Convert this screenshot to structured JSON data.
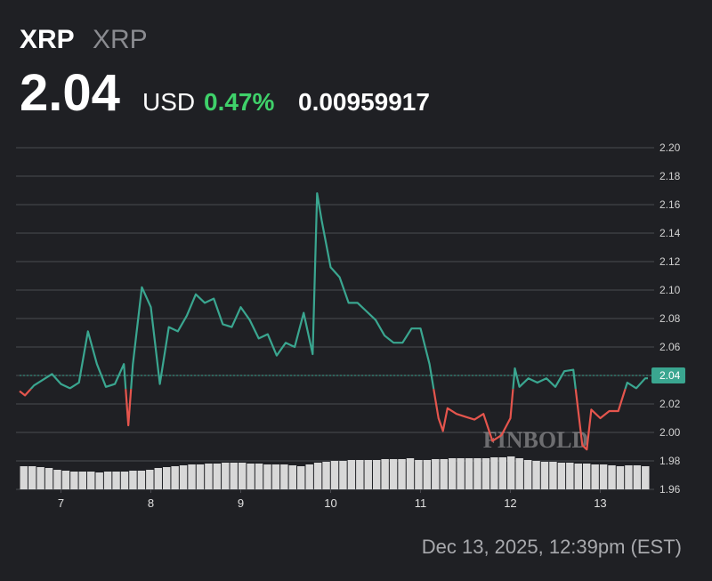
{
  "header": {
    "symbol": "XRP",
    "name": "XRP",
    "price": "2.04",
    "currency": "USD",
    "change_percent": "0.47%",
    "change": "0.00959917"
  },
  "chart_data": {
    "type": "line",
    "x": [
      6.54,
      6.6,
      6.7,
      6.8,
      6.9,
      7.0,
      7.1,
      7.2,
      7.3,
      7.4,
      7.5,
      7.6,
      7.7,
      7.75,
      7.8,
      7.9,
      8.0,
      8.1,
      8.2,
      8.3,
      8.4,
      8.5,
      8.6,
      8.7,
      8.8,
      8.9,
      9.0,
      9.1,
      9.2,
      9.3,
      9.4,
      9.5,
      9.6,
      9.7,
      9.8,
      9.85,
      9.9,
      10.0,
      10.1,
      10.2,
      10.3,
      10.4,
      10.5,
      10.6,
      10.7,
      10.8,
      10.9,
      11.0,
      11.1,
      11.2,
      11.25,
      11.3,
      11.4,
      11.5,
      11.6,
      11.7,
      11.8,
      11.9,
      12.0,
      12.05,
      12.1,
      12.2,
      12.3,
      12.4,
      12.5,
      12.6,
      12.7,
      12.8,
      12.85,
      12.9,
      13.0,
      13.1,
      13.2,
      13.3,
      13.4,
      13.5,
      13.53
    ],
    "values": [
      2.029,
      2.026,
      2.033,
      2.037,
      2.041,
      2.034,
      2.031,
      2.035,
      2.071,
      2.048,
      2.032,
      2.034,
      2.048,
      2.005,
      2.048,
      2.102,
      2.088,
      2.034,
      2.074,
      2.071,
      2.082,
      2.097,
      2.091,
      2.094,
      2.076,
      2.074,
      2.088,
      2.079,
      2.066,
      2.069,
      2.054,
      2.063,
      2.06,
      2.084,
      2.055,
      2.168,
      2.149,
      2.116,
      2.109,
      2.091,
      2.091,
      2.085,
      2.079,
      2.068,
      2.063,
      2.063,
      2.073,
      2.073,
      2.048,
      2.01,
      2.001,
      2.017,
      2.013,
      2.011,
      2.009,
      2.013,
      1.994,
      1.998,
      2.01,
      2.045,
      2.032,
      2.038,
      2.035,
      2.038,
      2.032,
      2.043,
      2.044,
      1.991,
      1.988,
      2.016,
      2.01,
      2.015,
      2.015,
      2.035,
      2.031,
      2.038,
      2.038
    ],
    "baseline": 2.0305,
    "up_color": "#3aa690",
    "down_color": "#e5554d",
    "xlim": [
      6.54,
      13.55
    ],
    "xticks": [
      7,
      8,
      9,
      10,
      11,
      12,
      13
    ],
    "ylim": [
      1.96,
      2.22
    ],
    "yticks": [
      {
        "value": 1.96,
        "label": "1.96"
      },
      {
        "value": 1.98,
        "label": "1.98"
      },
      {
        "value": 2.0,
        "label": "2.00"
      },
      {
        "value": 2.02,
        "label": "2.02"
      },
      {
        "value": 2.04,
        "label": "2.04"
      },
      {
        "value": 2.06,
        "label": "2.06"
      },
      {
        "value": 2.08,
        "label": "2.08"
      },
      {
        "value": 2.1,
        "label": "2.10"
      },
      {
        "value": 2.12,
        "label": "2.12"
      },
      {
        "value": 2.14,
        "label": "2.14"
      },
      {
        "value": 2.16,
        "label": "2.16"
      },
      {
        "value": 2.18,
        "label": "2.18"
      },
      {
        "value": 2.2,
        "label": "2.20"
      }
    ],
    "grid": true,
    "price_tag": {
      "value": 2.04,
      "label": "2.04"
    },
    "volume": {
      "color": "#d8d8d8",
      "ylim": [
        0,
        100
      ],
      "values": [
        26,
        26,
        25,
        24,
        22,
        21,
        20,
        20,
        20,
        19,
        20,
        20,
        20,
        21,
        21,
        22,
        24,
        25,
        26,
        27,
        28,
        28,
        29,
        29,
        30,
        30,
        30,
        29,
        29,
        28,
        28,
        28,
        27,
        26,
        28,
        30,
        31,
        32,
        32,
        33,
        33,
        33,
        33,
        34,
        34,
        34,
        35,
        33,
        33,
        34,
        34,
        35,
        35,
        35,
        35,
        35,
        36,
        36,
        37,
        35,
        33,
        32,
        31,
        31,
        30,
        30,
        29,
        29,
        28,
        28,
        27,
        26,
        27,
        27,
        26
      ]
    },
    "watermark": "FINBOLD",
    "timestamp": "Dec 13, 2025, 12:39pm (EST)"
  }
}
